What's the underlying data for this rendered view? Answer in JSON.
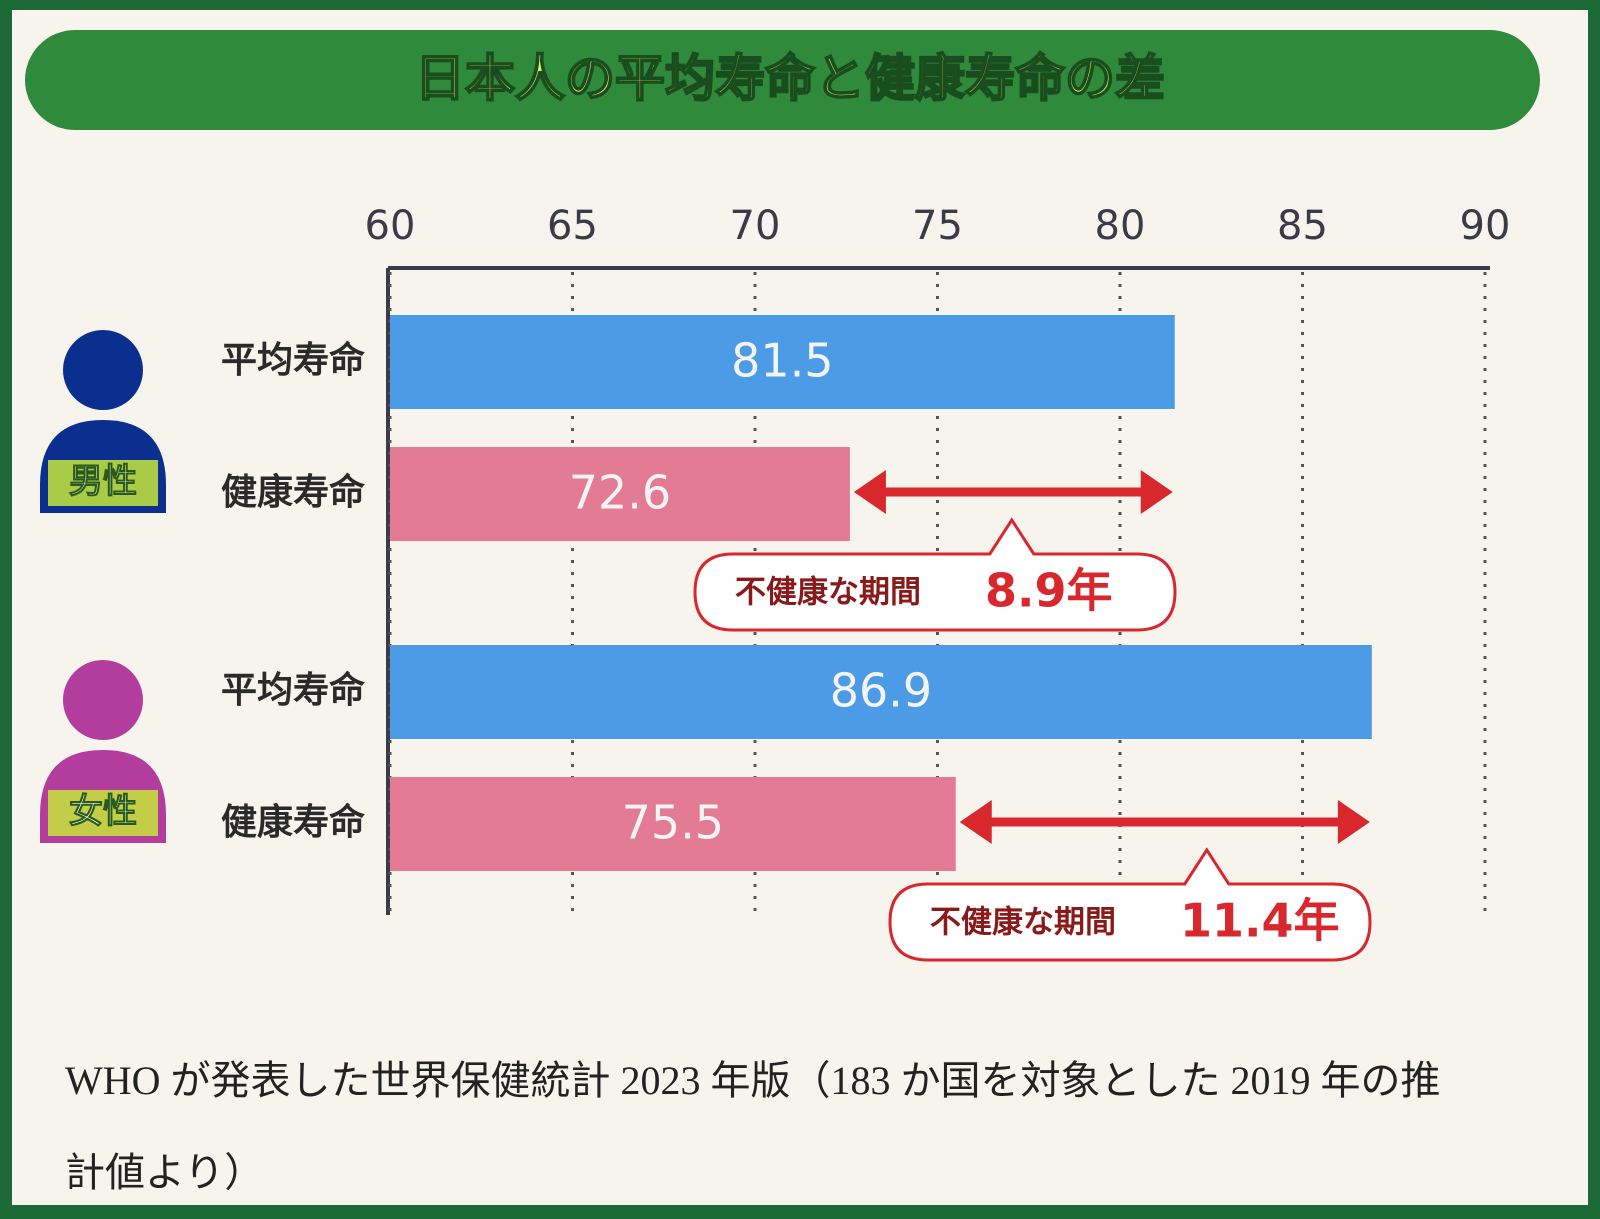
{
  "chart_data": {
    "type": "bar",
    "orientation": "horizontal",
    "title": "日本人の平均寿命と健康寿命の差",
    "categories": [
      "男性",
      "女性"
    ],
    "category_colors": [
      "#0b2f8f",
      "#b23d9c"
    ],
    "series": [
      {
        "name": "平均寿命",
        "color": "#4c9be6",
        "values": [
          81.5,
          86.9
        ]
      },
      {
        "name": "健康寿命",
        "color": "#e27b93",
        "values": [
          72.6,
          75.5
        ]
      }
    ],
    "xlim": [
      60,
      90
    ],
    "xticks": [
      60,
      65,
      70,
      75,
      80,
      85,
      90
    ],
    "grid": true,
    "gaps": [
      {
        "label": "不健康な期間",
        "value": 8.9,
        "value_label": "8.9年"
      },
      {
        "label": "不健康な期間",
        "value": 11.4,
        "value_label": "11.4年"
      }
    ],
    "gap_color": "#d8272d",
    "footnote": "WHO が発表した世界保健統計 2023 年版（183 か国を対象とした 2019 年の推計値より）"
  }
}
